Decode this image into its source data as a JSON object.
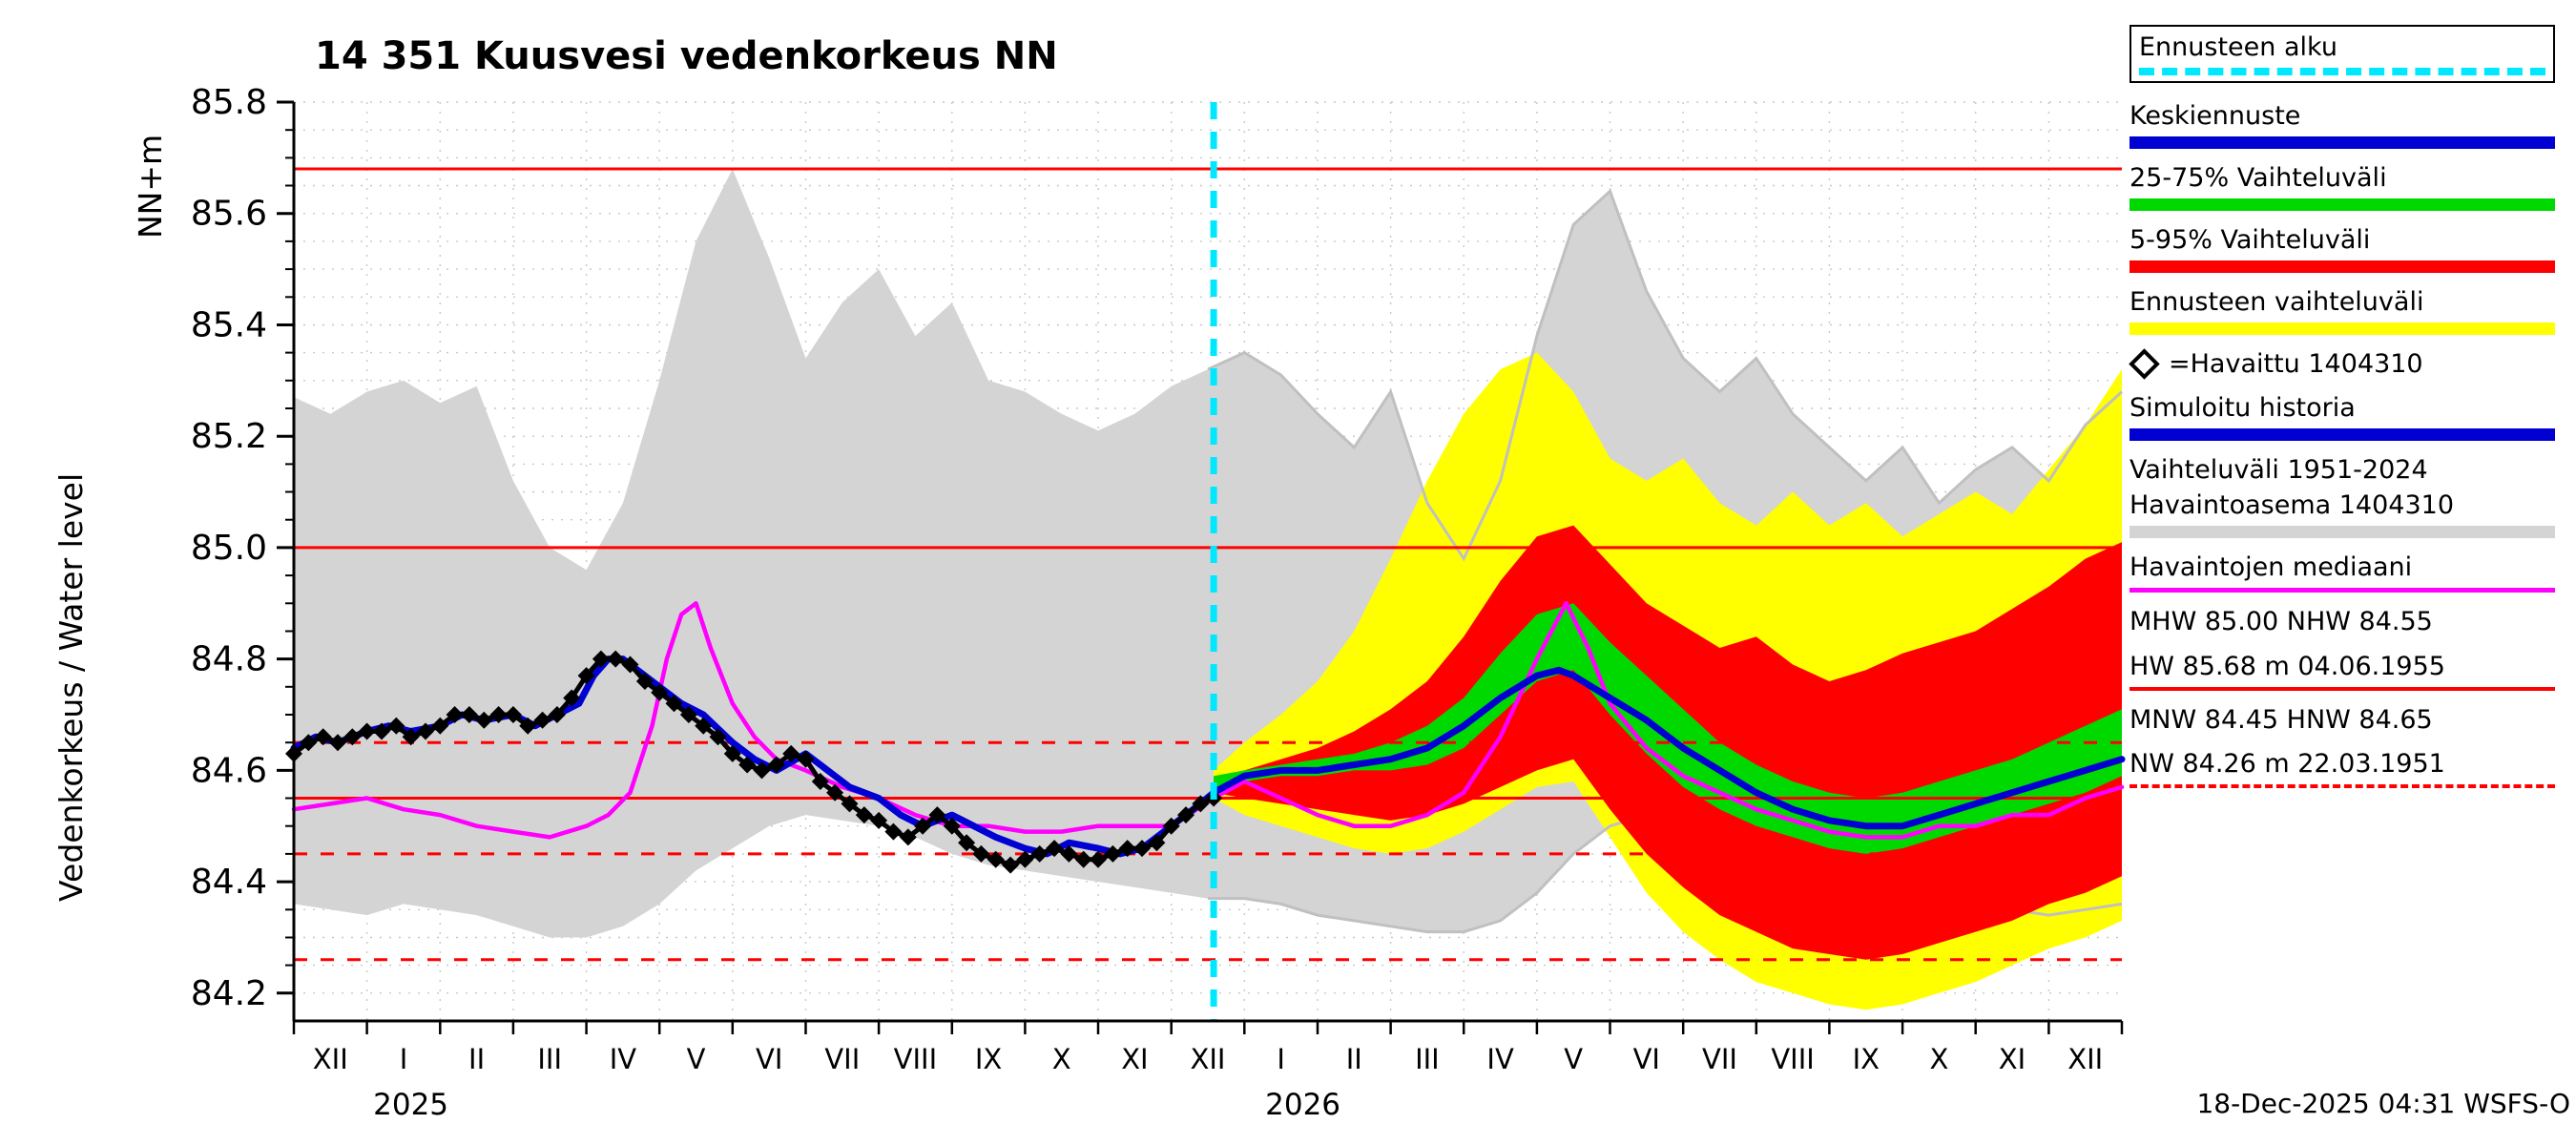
{
  "title": "14 351 Kuusvesi vedenkorkeus NN",
  "y_axis": {
    "unit_label": "NN+m",
    "axis_label": "Vedenkorkeus / Water level",
    "tick_min": 84.2,
    "tick_max": 85.8,
    "major_step": 0.2,
    "minor_step": 0.05
  },
  "x_axis": {
    "month_labels": [
      "XII",
      "I",
      "II",
      "III",
      "IV",
      "V",
      "VI",
      "VII",
      "VIII",
      "IX",
      "X",
      "XI",
      "XII",
      "I",
      "II",
      "III",
      "IV",
      "V",
      "VI",
      "VII",
      "VIII",
      "IX",
      "X",
      "XI",
      "XII"
    ],
    "year_labels": [
      {
        "label": "2025",
        "month": 1.6
      },
      {
        "label": "2026",
        "month": 13.8
      }
    ]
  },
  "footer": {
    "timestamp": "18-Dec-2025 04:31 WSFS-O"
  },
  "colors": {
    "forecast_start": "#00e8ff",
    "forecast_median": "#0000d2",
    "band_25_75": "#00d900",
    "band_5_95": "#ff0000",
    "band_forecast": "#ffff00",
    "history_range": "#d4d4d4",
    "observed": "#000000",
    "observed_median": "#ff00ff",
    "reference": "#ff0000",
    "grid": "#c8c8c8"
  },
  "legend": {
    "items": [
      {
        "label": "Ennusteen alku",
        "sample": "cyan-dashed",
        "boxed": true
      },
      {
        "label": "Keskiennuste",
        "sample": "blue-thick"
      },
      {
        "label": "25-75% Vaihteluväli",
        "sample": "green-thick"
      },
      {
        "label": "5-95% Vaihteluväli",
        "sample": "red-thick"
      },
      {
        "label": "Ennusteen vaihteluväli",
        "sample": "yellow-thick"
      },
      {
        "label": "=Havaittu 1404310",
        "sample": "diamond"
      },
      {
        "label": "Simuloitu historia",
        "sample": "blue-thick"
      },
      {
        "label": "Vaihteluväli 1951-2024",
        "label2": "Havaintoasema 1404310",
        "sample": "gray-thick"
      },
      {
        "label": "Havaintojen mediaani",
        "sample": "magenta-line"
      },
      {
        "label": "MHW 85.00 NHW 84.55",
        "sample": "none"
      },
      {
        "label": "HW 85.68 m 04.06.1955",
        "sample": "red-solid-thin"
      },
      {
        "label": "MNW 84.45 HNW 84.65",
        "sample": "none"
      },
      {
        "label": "NW 84.26 m 22.03.1951",
        "sample": "red-dashed-thin"
      }
    ]
  },
  "chart_data": {
    "type": "line",
    "xlim": [
      0,
      25
    ],
    "ylim": [
      84.15,
      85.8
    ],
    "x_unit": "months, XII = Dec 2024 through XII = Dec 2026",
    "forecast_start_x": 12.58,
    "forecast_start_label": "18-Dec-2025",
    "bands": {
      "history_range": {
        "name": "Vaihteluväli 1951-2024 Havaintoasema 1404310",
        "x": [
          0,
          0.5,
          1,
          1.5,
          2,
          2.5,
          3,
          3.5,
          4,
          4.5,
          5,
          5.5,
          6,
          6.5,
          7,
          7.5,
          8,
          8.5,
          9,
          9.5,
          10,
          10.5,
          11,
          11.5,
          12,
          12.5,
          13,
          13.5,
          14,
          14.5,
          15,
          15.5,
          16,
          16.5,
          17,
          17.5,
          18,
          18.5,
          19,
          19.5,
          20,
          20.5,
          21,
          21.5,
          22,
          22.5,
          23,
          23.5,
          24,
          24.5,
          25
        ],
        "hi": [
          85.27,
          85.24,
          85.28,
          85.3,
          85.26,
          85.29,
          85.12,
          85.0,
          84.96,
          85.08,
          85.3,
          85.55,
          85.68,
          85.52,
          85.34,
          85.44,
          85.5,
          85.38,
          85.44,
          85.3,
          85.28,
          85.24,
          85.21,
          85.24,
          85.29,
          85.32,
          85.35,
          85.31,
          85.24,
          85.18,
          85.28,
          85.08,
          84.98,
          85.12,
          85.38,
          85.58,
          85.64,
          85.46,
          85.34,
          85.28,
          85.34,
          85.24,
          85.18,
          85.12,
          85.18,
          85.08,
          85.14,
          85.18,
          85.12,
          85.22,
          85.28
        ],
        "lo": [
          84.36,
          84.35,
          84.34,
          84.36,
          84.35,
          84.34,
          84.32,
          84.3,
          84.3,
          84.32,
          84.36,
          84.42,
          84.46,
          84.5,
          84.52,
          84.51,
          84.5,
          84.48,
          84.45,
          84.43,
          84.42,
          84.41,
          84.4,
          84.39,
          84.38,
          84.37,
          84.37,
          84.36,
          84.34,
          84.33,
          84.32,
          84.31,
          84.31,
          84.33,
          84.38,
          84.45,
          84.5,
          84.52,
          84.5,
          84.48,
          84.47,
          84.45,
          84.43,
          84.4,
          84.38,
          84.36,
          84.36,
          84.35,
          84.34,
          84.35,
          84.36
        ]
      },
      "forecast_range": {
        "name": "Ennusteen vaihteluväli",
        "x": [
          12.58,
          13,
          13.5,
          14,
          14.5,
          15,
          15.5,
          16,
          16.5,
          17,
          17.5,
          18,
          18.5,
          19,
          19.5,
          20,
          20.5,
          21,
          21.5,
          22,
          22.5,
          23,
          23.5,
          24,
          24.5,
          25
        ],
        "hi": [
          84.6,
          84.65,
          84.7,
          84.76,
          84.85,
          84.98,
          85.12,
          85.24,
          85.32,
          85.35,
          85.28,
          85.16,
          85.12,
          85.16,
          85.08,
          85.04,
          85.1,
          85.04,
          85.08,
          85.02,
          85.06,
          85.1,
          85.06,
          85.14,
          85.22,
          85.32
        ],
        "lo": [
          84.55,
          84.52,
          84.5,
          84.48,
          84.46,
          84.45,
          84.46,
          84.49,
          84.53,
          84.57,
          84.58,
          84.48,
          84.38,
          84.31,
          84.26,
          84.22,
          84.2,
          84.18,
          84.17,
          84.18,
          84.2,
          84.22,
          84.25,
          84.28,
          84.3,
          84.33
        ]
      },
      "band_5_95": {
        "name": "5-95% Vaihteluväli",
        "x": [
          12.58,
          13,
          13.5,
          14,
          14.5,
          15,
          15.5,
          16,
          16.5,
          17,
          17.5,
          18,
          18.5,
          19,
          19.5,
          20,
          20.5,
          21,
          21.5,
          22,
          22.5,
          23,
          23.5,
          24,
          24.5,
          25
        ],
        "hi": [
          84.58,
          84.6,
          84.62,
          84.64,
          84.67,
          84.71,
          84.76,
          84.84,
          84.94,
          85.02,
          85.04,
          84.97,
          84.9,
          84.86,
          84.82,
          84.84,
          84.79,
          84.76,
          84.78,
          84.81,
          84.83,
          84.85,
          84.89,
          84.93,
          84.98,
          85.01
        ],
        "lo": [
          84.56,
          84.55,
          84.54,
          84.53,
          84.52,
          84.51,
          84.52,
          84.54,
          84.57,
          84.6,
          84.62,
          84.53,
          84.45,
          84.39,
          84.34,
          84.31,
          84.28,
          84.27,
          84.26,
          84.27,
          84.29,
          84.31,
          84.33,
          84.36,
          84.38,
          84.41
        ]
      },
      "band_25_75": {
        "name": "25-75% Vaihteluväli",
        "x": [
          12.58,
          13,
          13.5,
          14,
          14.5,
          15,
          15.5,
          16,
          16.5,
          17,
          17.5,
          18,
          18.5,
          19,
          19.5,
          20,
          20.5,
          21,
          21.5,
          22,
          22.5,
          23,
          23.5,
          24,
          24.5,
          25
        ],
        "hi": [
          84.59,
          84.6,
          84.61,
          84.62,
          84.63,
          84.65,
          84.68,
          84.73,
          84.81,
          84.88,
          84.9,
          84.83,
          84.77,
          84.71,
          84.65,
          84.61,
          84.58,
          84.56,
          84.55,
          84.56,
          84.58,
          84.6,
          84.62,
          84.65,
          84.68,
          84.71
        ],
        "lo": [
          84.57,
          84.58,
          84.59,
          84.59,
          84.6,
          84.6,
          84.61,
          84.64,
          84.7,
          84.76,
          84.78,
          84.7,
          84.63,
          84.57,
          84.53,
          84.5,
          84.48,
          84.46,
          84.45,
          84.46,
          84.48,
          84.5,
          84.52,
          84.54,
          84.56,
          84.59
        ]
      }
    },
    "series": {
      "median_forecast": {
        "name": "Keskiennuste / Simuloitu historia",
        "x": [
          0,
          0.3,
          0.6,
          1,
          1.3,
          1.6,
          2,
          2.3,
          2.6,
          3,
          3.3,
          3.6,
          3.9,
          4.1,
          4.3,
          4.5,
          4.7,
          5,
          5.3,
          5.6,
          6,
          6.3,
          6.6,
          7,
          7.3,
          7.6,
          8,
          8.3,
          8.6,
          9,
          9.3,
          9.6,
          10,
          10.3,
          10.6,
          11,
          11.3,
          11.6,
          12,
          12.3,
          12.58,
          13,
          13.5,
          14,
          14.5,
          15,
          15.5,
          16,
          16.5,
          17,
          17.3,
          17.5,
          18,
          18.5,
          19,
          19.5,
          20,
          20.5,
          21,
          21.5,
          22,
          22.5,
          23,
          23.5,
          24,
          24.5,
          25
        ],
        "y": [
          84.64,
          84.66,
          84.65,
          84.67,
          84.68,
          84.67,
          84.68,
          84.7,
          84.69,
          84.7,
          84.68,
          84.7,
          84.72,
          84.77,
          84.8,
          84.8,
          84.78,
          84.75,
          84.72,
          84.7,
          84.65,
          84.62,
          84.6,
          84.63,
          84.6,
          84.57,
          84.55,
          84.52,
          84.5,
          84.52,
          84.5,
          84.48,
          84.46,
          84.45,
          84.47,
          84.46,
          84.45,
          84.46,
          84.5,
          84.53,
          84.56,
          84.59,
          84.6,
          84.6,
          84.61,
          84.62,
          84.64,
          84.68,
          84.73,
          84.77,
          84.78,
          84.77,
          84.73,
          84.69,
          84.64,
          84.6,
          84.56,
          84.53,
          84.51,
          84.5,
          84.5,
          84.52,
          84.54,
          84.56,
          84.58,
          84.6,
          84.62
        ]
      },
      "observed_median": {
        "name": "Havaintojen mediaani",
        "x": [
          0,
          0.5,
          1,
          1.5,
          2,
          2.5,
          3,
          3.5,
          4,
          4.3,
          4.6,
          4.9,
          5.1,
          5.3,
          5.5,
          5.7,
          6,
          6.3,
          6.6,
          7,
          7.5,
          8,
          8.5,
          9,
          9.5,
          10,
          10.5,
          11,
          11.5,
          12,
          12.58,
          13,
          13.5,
          14,
          14.5,
          15,
          15.5,
          16,
          16.5,
          17,
          17.4,
          17.7,
          18,
          18.5,
          19,
          19.5,
          20,
          20.5,
          21,
          21.5,
          22,
          22.5,
          23,
          23.5,
          24,
          24.5,
          25
        ],
        "y": [
          84.53,
          84.54,
          84.55,
          84.53,
          84.52,
          84.5,
          84.49,
          84.48,
          84.5,
          84.52,
          84.56,
          84.68,
          84.8,
          84.88,
          84.9,
          84.82,
          84.72,
          84.66,
          84.62,
          84.6,
          84.57,
          84.55,
          84.52,
          84.5,
          84.5,
          84.49,
          84.49,
          84.5,
          84.5,
          84.5,
          84.55,
          84.58,
          84.55,
          84.52,
          84.5,
          84.5,
          84.52,
          84.56,
          84.66,
          84.8,
          84.9,
          84.82,
          84.72,
          84.64,
          84.59,
          84.56,
          84.53,
          84.51,
          84.49,
          84.48,
          84.48,
          84.5,
          84.5,
          84.52,
          84.52,
          84.55,
          84.57
        ]
      },
      "observed": {
        "name": "Havaittu 1404310",
        "x": [
          0,
          0.2,
          0.4,
          0.6,
          0.8,
          1,
          1.2,
          1.4,
          1.6,
          1.8,
          2,
          2.2,
          2.4,
          2.6,
          2.8,
          3,
          3.2,
          3.4,
          3.6,
          3.8,
          4,
          4.2,
          4.4,
          4.6,
          4.8,
          5,
          5.2,
          5.4,
          5.6,
          5.8,
          6,
          6.2,
          6.4,
          6.6,
          6.8,
          7,
          7.2,
          7.4,
          7.6,
          7.8,
          8,
          8.2,
          8.4,
          8.6,
          8.8,
          9,
          9.2,
          9.4,
          9.6,
          9.8,
          10,
          10.2,
          10.4,
          10.6,
          10.8,
          11,
          11.2,
          11.4,
          11.6,
          11.8,
          12,
          12.2,
          12.4,
          12.58
        ],
        "y": [
          84.63,
          84.65,
          84.66,
          84.65,
          84.66,
          84.67,
          84.67,
          84.68,
          84.66,
          84.67,
          84.68,
          84.7,
          84.7,
          84.69,
          84.7,
          84.7,
          84.68,
          84.69,
          84.7,
          84.73,
          84.77,
          84.8,
          84.8,
          84.79,
          84.76,
          84.74,
          84.72,
          84.7,
          84.68,
          84.66,
          84.63,
          84.61,
          84.6,
          84.61,
          84.63,
          84.62,
          84.58,
          84.56,
          84.54,
          84.52,
          84.51,
          84.49,
          84.48,
          84.5,
          84.52,
          84.5,
          84.47,
          84.45,
          84.44,
          84.43,
          84.44,
          84.45,
          84.46,
          84.45,
          84.44,
          84.44,
          84.45,
          84.46,
          84.46,
          84.47,
          84.5,
          84.52,
          84.54,
          84.55
        ]
      }
    },
    "reference_lines": [
      {
        "label": "HW",
        "value": 85.68,
        "style": "solid"
      },
      {
        "label": "MHW",
        "value": 85.0,
        "style": "solid"
      },
      {
        "label": "NHW",
        "value": 84.55,
        "style": "solid"
      },
      {
        "label": "HNW",
        "value": 84.65,
        "style": "dashed"
      },
      {
        "label": "MNW",
        "value": 84.45,
        "style": "dashed"
      },
      {
        "label": "NW",
        "value": 84.26,
        "style": "dashed"
      }
    ]
  }
}
